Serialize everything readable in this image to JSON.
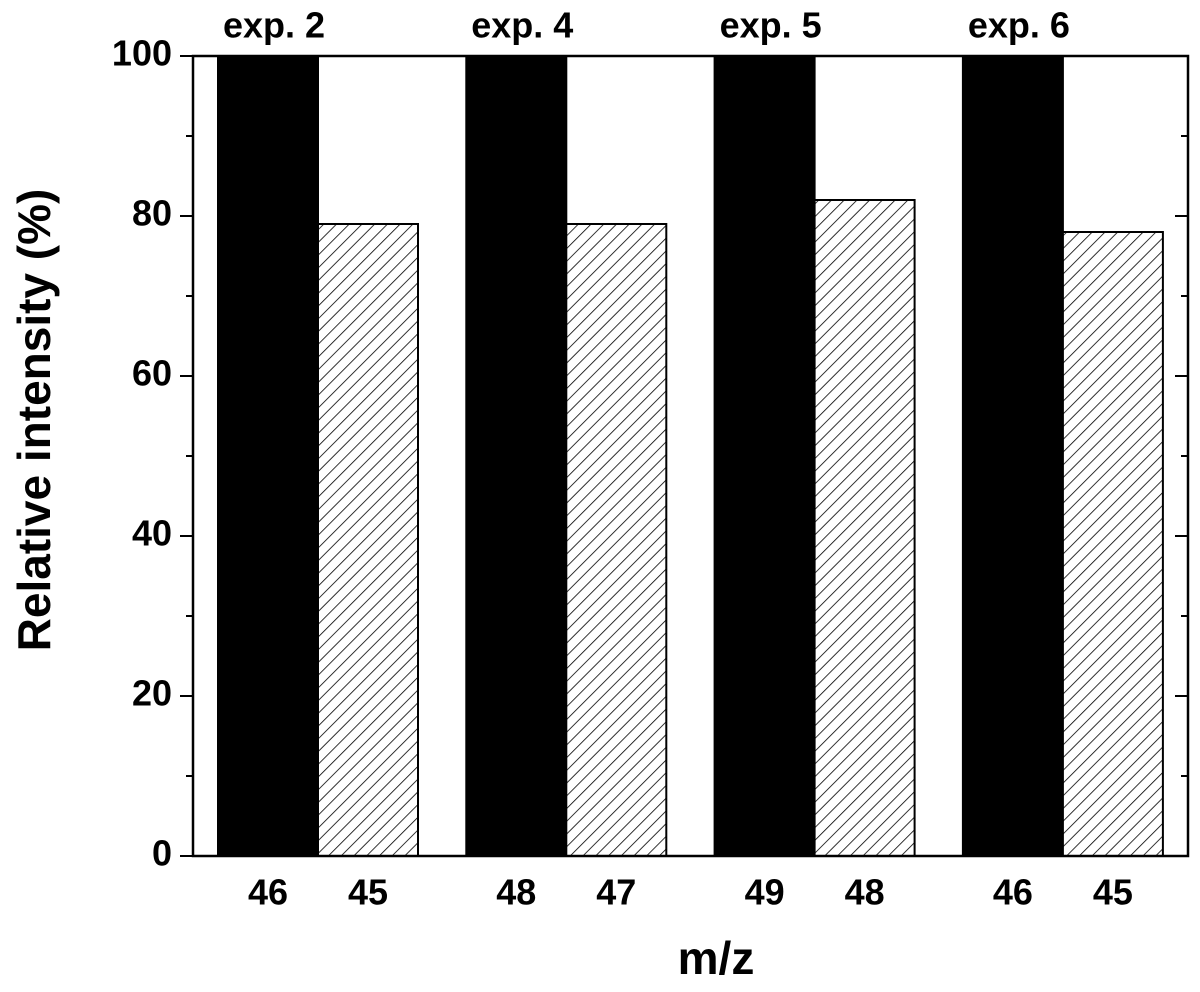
{
  "chart_data": {
    "type": "bar",
    "xlabel": "m/z",
    "ylabel": "Relative intensity (%)",
    "categories": [
      "exp. 2",
      "exp. 4",
      "exp. 5",
      "exp. 6"
    ],
    "series": [
      {
        "color": "#000000",
        "values": [
          100,
          100,
          100,
          100
        ],
        "x_labels": [
          "46",
          "48",
          "49",
          "46"
        ]
      },
      {
        "color": "#ffffff",
        "pattern": "hatch",
        "values": [
          79,
          79,
          82,
          78
        ],
        "x_labels": [
          "45",
          "47",
          "48",
          "45"
        ]
      }
    ],
    "ylim": [
      0,
      100
    ],
    "yticks": [
      0,
      20,
      40,
      60,
      80,
      100
    ],
    "minor_yticks": [
      10,
      30,
      50,
      70,
      90
    ]
  }
}
